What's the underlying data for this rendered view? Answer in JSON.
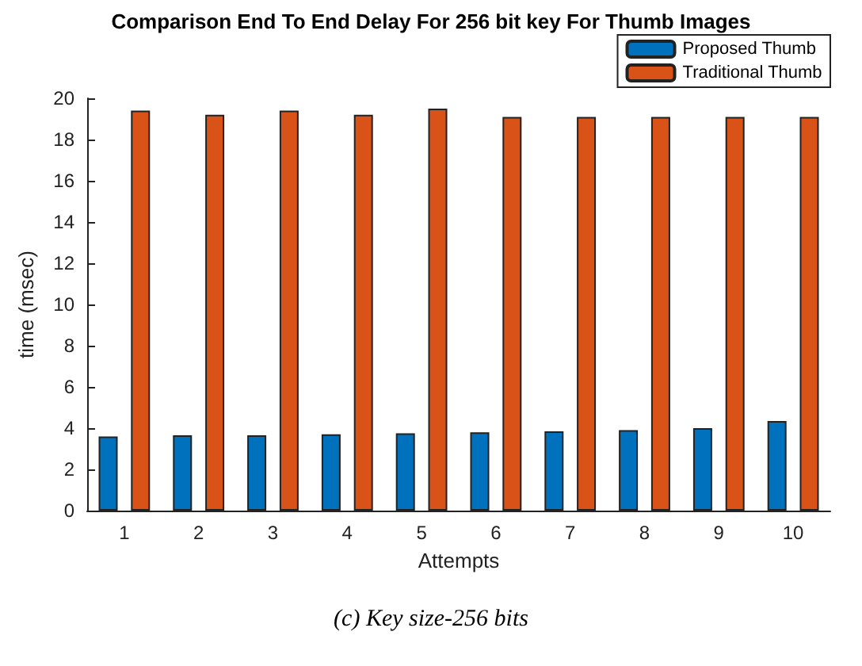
{
  "chart_data": {
    "type": "bar",
    "title": "Comparison End To End Delay For 256 bit key For Thumb Images",
    "xlabel": "Attempts",
    "ylabel": "time (msec)",
    "categories": [
      "1",
      "2",
      "3",
      "4",
      "5",
      "6",
      "7",
      "8",
      "9",
      "10"
    ],
    "series": [
      {
        "name": "Proposed Thumb",
        "color": "#0072bd",
        "values": [
          3.6,
          3.65,
          3.65,
          3.7,
          3.75,
          3.8,
          3.85,
          3.9,
          4.0,
          4.35
        ]
      },
      {
        "name": "Traditional Thumb",
        "color": "#d95319",
        "values": [
          19.4,
          19.2,
          19.4,
          19.2,
          19.5,
          19.1,
          19.1,
          19.1,
          19.1,
          19.1
        ]
      }
    ],
    "ylim": [
      0,
      20
    ],
    "yticks": [
      0,
      2,
      4,
      6,
      8,
      10,
      12,
      14,
      16,
      18,
      20
    ],
    "grid": false,
    "legend": "top right",
    "annotations": [
      "(c) Key size-256 bits"
    ]
  }
}
